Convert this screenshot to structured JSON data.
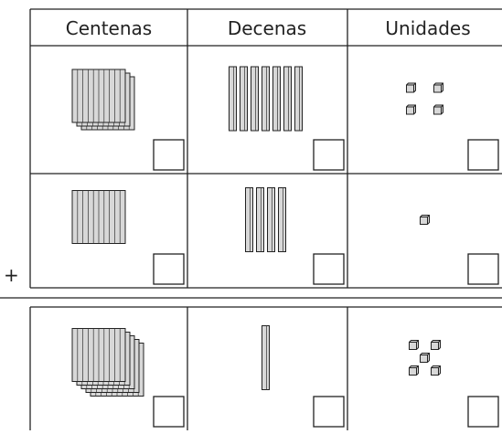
{
  "headers": [
    "Centenas",
    "Decenas",
    "Unidades"
  ],
  "operator": "+",
  "rows": [
    [
      3,
      7,
      4
    ],
    [
      1,
      4,
      1
    ],
    [
      5,
      1,
      5
    ]
  ]
}
